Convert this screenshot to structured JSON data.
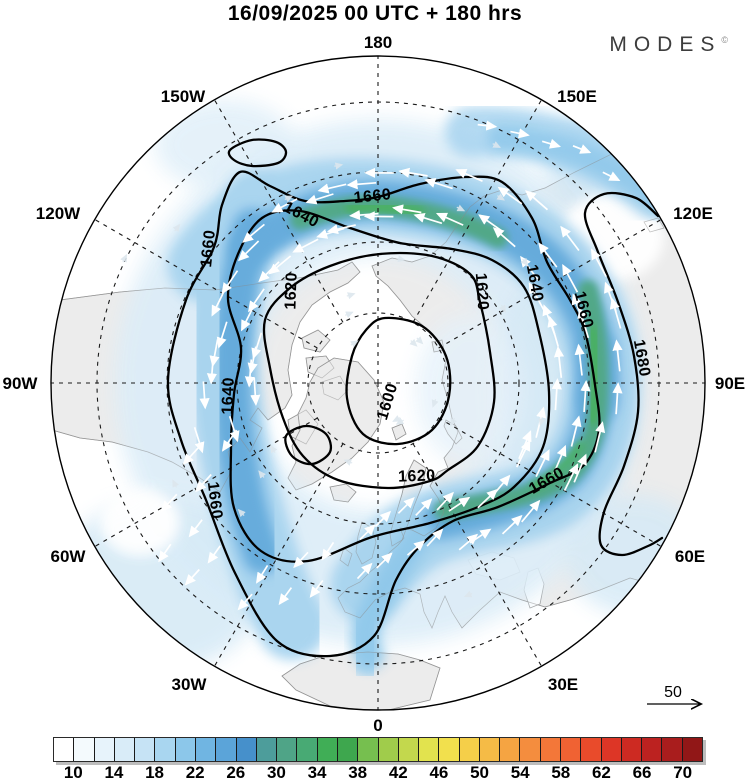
{
  "header": {
    "title": "16/09/2025  00 UTC  + 180 hrs",
    "brand": "MODES",
    "brand_mark": "©"
  },
  "map": {
    "compass_labels": [
      "180",
      "150E",
      "120E",
      "90E",
      "60E",
      "30E",
      "0",
      "30W",
      "60W",
      "90W",
      "120W",
      "150W"
    ],
    "contour_labels": [
      "1600",
      "1620",
      "1620",
      "1620",
      "1640",
      "1640",
      "1640",
      "1660",
      "1660",
      "1660",
      "1660",
      "1660",
      "1680"
    ],
    "reference_arrow_label": "50"
  },
  "chart_data": {
    "type": "heatmap",
    "title": "16/09/2025  00 UTC  + 180 hrs",
    "projection": "north polar stereographic, 180 at top, 0 at bottom",
    "shaded_field_colorbar": {
      "min": 8,
      "max": 72,
      "cell_step": 2,
      "tick_labels": [
        10,
        14,
        18,
        22,
        26,
        30,
        34,
        38,
        42,
        46,
        50,
        54,
        58,
        62,
        66,
        70
      ],
      "cell_colors": [
        "#ffffff",
        "#f4fafd",
        "#e7f3fb",
        "#d9ecf8",
        "#c6e3f5",
        "#a9d6f0",
        "#8cc7ea",
        "#70b5e2",
        "#5ba4d9",
        "#4690cb",
        "#4d9d9b",
        "#4fa487",
        "#48aa74",
        "#40ae56",
        "#3ea74e",
        "#76bf4f",
        "#a0cc4b",
        "#c3d84d",
        "#e2e34e",
        "#f2e04d",
        "#f5cf49",
        "#f5bb46",
        "#f5a442",
        "#f48d3e",
        "#f37739",
        "#f06233",
        "#e94b2b",
        "#dd3626",
        "#cd2a22",
        "#bc2220",
        "#a91d1d",
        "#911717"
      ]
    },
    "contours": {
      "levels": [
        1600,
        1620,
        1640,
        1660,
        1680
      ],
      "interval": 20
    },
    "longitude_labels": [
      "180",
      "150E",
      "120E",
      "90E",
      "60E",
      "30E",
      "0",
      "30W",
      "60W",
      "90W",
      "120W",
      "150W"
    ],
    "latitude_circles_dashed": 4,
    "wind_reference_arrow_value": 50,
    "accent_colors": {
      "jet_core_green": "#4aa582",
      "jet_strong_blue": "#5fa8db",
      "band_medium_blue": "#a6d3ef",
      "band_light_blue": "#dcedf8",
      "land_fill": "#ececec",
      "coastline": "#9b9b9b"
    }
  }
}
